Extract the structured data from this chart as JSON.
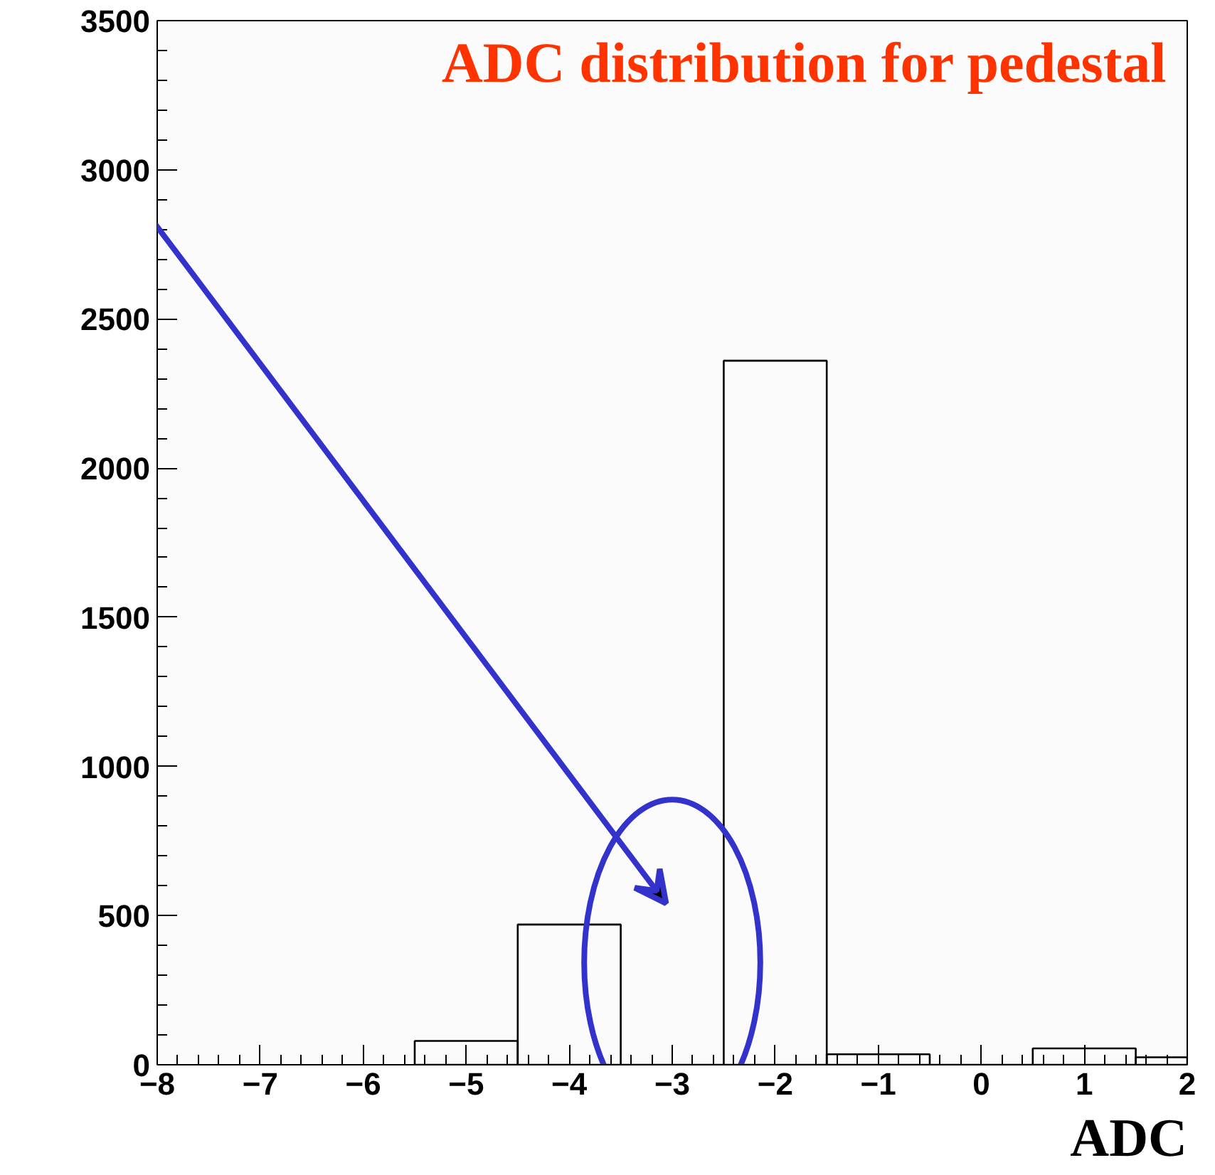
{
  "chart_data": {
    "type": "histogram",
    "title": "ADC distribution for pedestal",
    "xlabel": "ADC",
    "bins": [
      -5.5,
      -4.5,
      -3.5,
      -2.5,
      -1.5,
      -0.5,
      0.5,
      1.5,
      2
    ],
    "values": [
      80,
      470,
      0,
      2360,
      35,
      0,
      55,
      25
    ],
    "color": "#000000",
    "xlim": [
      -8,
      2
    ],
    "xticks": [
      -8,
      -7,
      -6,
      -5,
      -4,
      -3,
      -2,
      -1,
      0,
      1,
      2
    ],
    "ylim": [
      0,
      3500
    ],
    "yticks": [
      0,
      500,
      1000,
      1500,
      2000,
      2500,
      3000,
      3500
    ],
    "grid": false
  }
}
